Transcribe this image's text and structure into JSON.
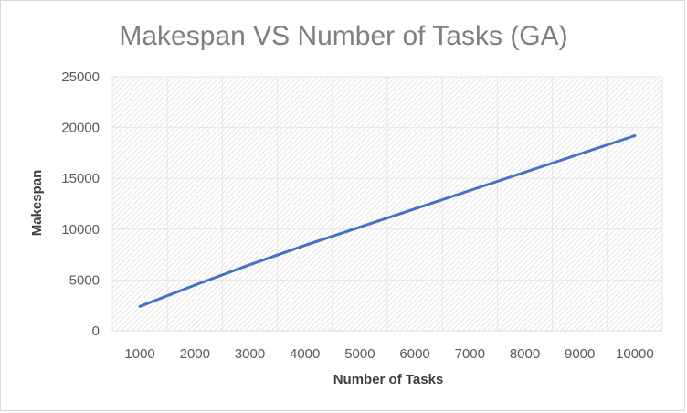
{
  "chart_data": {
    "type": "line",
    "title": "Makespan VS Number of Tasks (GA)",
    "xlabel": "Number of Tasks",
    "ylabel": "Makespan",
    "categories": [
      "1000",
      "2000",
      "3000",
      "4000",
      "5000",
      "6000",
      "7000",
      "8000",
      "9000",
      "10000"
    ],
    "y_ticks": [
      "0",
      "5000",
      "10000",
      "15000",
      "20000",
      "25000"
    ],
    "ylim": [
      0,
      25000
    ],
    "grid": true,
    "legend": "none",
    "series": [
      {
        "values": [
          2400,
          4500,
          6500,
          8400,
          10200,
          12000,
          13800,
          15600,
          17400,
          19200
        ],
        "color": "#4472c4"
      }
    ]
  }
}
